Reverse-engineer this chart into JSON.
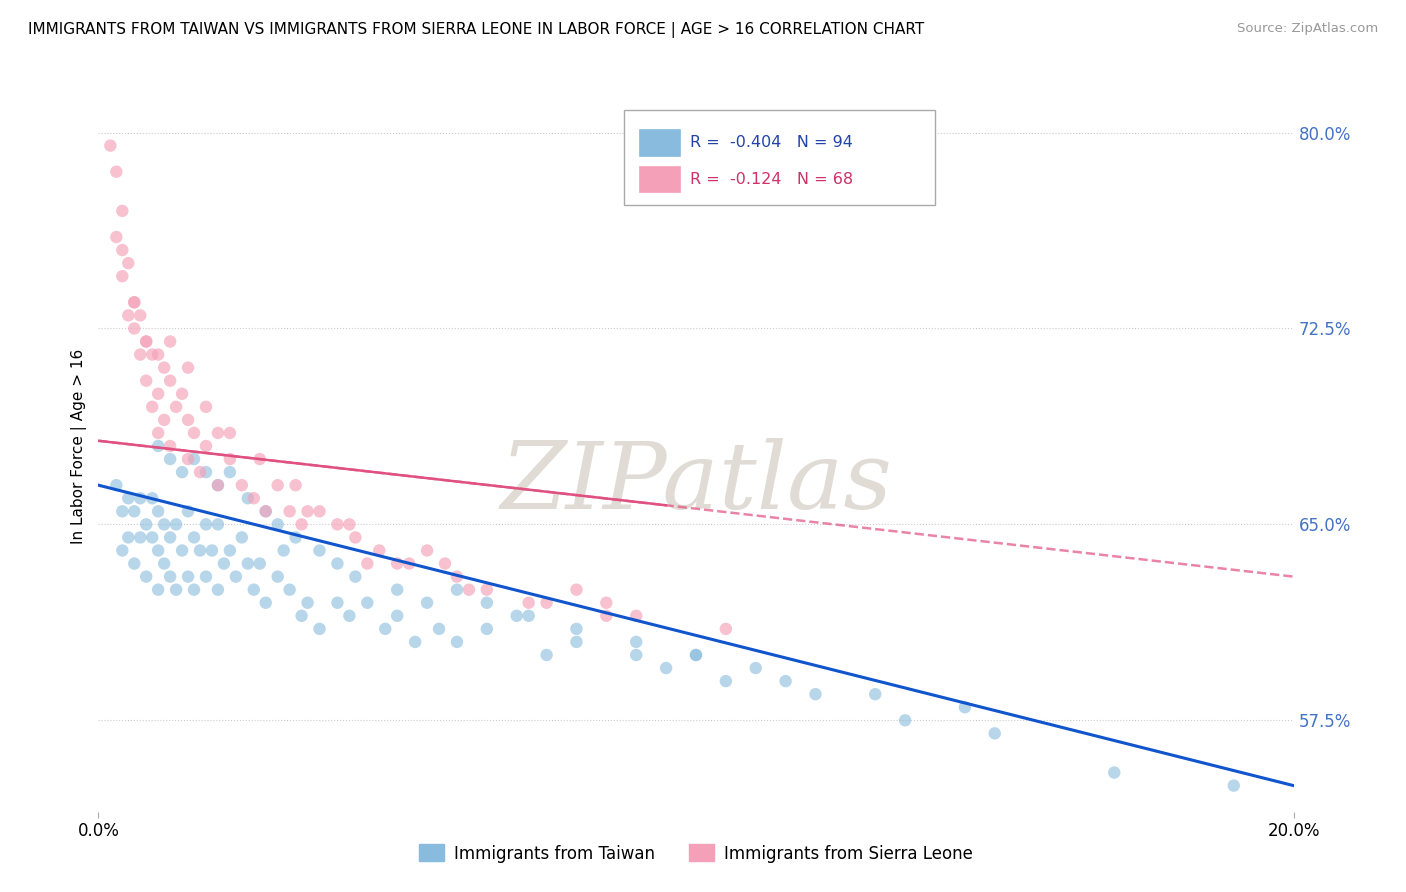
{
  "title": "IMMIGRANTS FROM TAIWAN VS IMMIGRANTS FROM SIERRA LEONE IN LABOR FORCE | AGE > 16 CORRELATION CHART",
  "source": "Source: ZipAtlas.com",
  "ylabel_label": "In Labor Force | Age > 16",
  "legend_label1": "Immigrants from Taiwan",
  "legend_label2": "Immigrants from Sierra Leone",
  "r1": -0.404,
  "n1": 94,
  "r2": -0.124,
  "n2": 68,
  "color_taiwan": "#88bbdd",
  "color_sierra": "#f4a0b8",
  "color_taiwan_line": "#1155cc",
  "color_sierra_line": "#e05080",
  "watermark": "ZIPatlas",
  "xlim": [
    0.0,
    20.0
  ],
  "ylim": [
    54.0,
    82.0
  ],
  "yticks": [
    57.5,
    65.0,
    72.5,
    80.0
  ],
  "taiwan_line_x0": 0.0,
  "taiwan_line_y0": 66.5,
  "taiwan_line_x1": 20.0,
  "taiwan_line_y1": 55.0,
  "sierra_line_x0": 0.0,
  "sierra_line_y0": 68.2,
  "sierra_line_x1": 20.0,
  "sierra_line_y1": 63.0,
  "taiwan_scatter_x": [
    0.3,
    0.4,
    0.4,
    0.5,
    0.5,
    0.6,
    0.6,
    0.7,
    0.7,
    0.8,
    0.8,
    0.9,
    0.9,
    1.0,
    1.0,
    1.0,
    1.1,
    1.1,
    1.2,
    1.2,
    1.3,
    1.3,
    1.4,
    1.5,
    1.5,
    1.6,
    1.6,
    1.7,
    1.8,
    1.8,
    1.9,
    2.0,
    2.0,
    2.1,
    2.2,
    2.3,
    2.4,
    2.5,
    2.6,
    2.7,
    2.8,
    3.0,
    3.1,
    3.2,
    3.4,
    3.5,
    3.7,
    4.0,
    4.2,
    4.5,
    4.8,
    5.0,
    5.3,
    5.7,
    6.0,
    6.5,
    7.0,
    7.5,
    8.0,
    9.0,
    9.5,
    10.0,
    10.5,
    11.0,
    12.0,
    13.5,
    14.5,
    1.0,
    1.2,
    1.4,
    1.6,
    1.8,
    2.0,
    2.2,
    2.5,
    2.8,
    3.0,
    3.3,
    3.7,
    4.0,
    4.3,
    5.0,
    5.5,
    6.0,
    6.5,
    7.2,
    8.0,
    9.0,
    10.0,
    11.5,
    13.0,
    15.0,
    17.0,
    19.0
  ],
  "taiwan_scatter_y": [
    66.5,
    65.5,
    64.0,
    66.0,
    64.5,
    65.5,
    63.5,
    66.0,
    64.5,
    65.0,
    63.0,
    66.0,
    64.5,
    65.5,
    64.0,
    62.5,
    65.0,
    63.5,
    64.5,
    63.0,
    65.0,
    62.5,
    64.0,
    65.5,
    63.0,
    64.5,
    62.5,
    64.0,
    65.0,
    63.0,
    64.0,
    65.0,
    62.5,
    63.5,
    64.0,
    63.0,
    64.5,
    63.5,
    62.5,
    63.5,
    62.0,
    63.0,
    64.0,
    62.5,
    61.5,
    62.0,
    61.0,
    62.0,
    61.5,
    62.0,
    61.0,
    61.5,
    60.5,
    61.0,
    60.5,
    61.0,
    61.5,
    60.0,
    60.5,
    60.0,
    59.5,
    60.0,
    59.0,
    59.5,
    58.5,
    57.5,
    58.0,
    68.0,
    67.5,
    67.0,
    67.5,
    67.0,
    66.5,
    67.0,
    66.0,
    65.5,
    65.0,
    64.5,
    64.0,
    63.5,
    63.0,
    62.5,
    62.0,
    62.5,
    62.0,
    61.5,
    61.0,
    60.5,
    60.0,
    59.0,
    58.5,
    57.0,
    55.5,
    55.0
  ],
  "sierra_scatter_x": [
    0.2,
    0.3,
    0.3,
    0.4,
    0.4,
    0.5,
    0.5,
    0.6,
    0.6,
    0.7,
    0.7,
    0.8,
    0.8,
    0.9,
    0.9,
    1.0,
    1.0,
    1.1,
    1.1,
    1.2,
    1.2,
    1.3,
    1.4,
    1.5,
    1.5,
    1.6,
    1.7,
    1.8,
    2.0,
    2.0,
    2.2,
    2.4,
    2.6,
    2.8,
    3.0,
    3.2,
    3.4,
    3.7,
    4.0,
    4.3,
    4.7,
    5.0,
    5.5,
    6.0,
    6.5,
    7.2,
    8.0,
    8.5,
    9.0,
    3.5,
    4.5,
    5.8,
    7.5,
    10.5,
    0.4,
    0.6,
    0.8,
    1.0,
    1.2,
    1.5,
    1.8,
    2.2,
    2.7,
    3.3,
    4.2,
    5.2,
    6.2,
    8.5
  ],
  "sierra_scatter_y": [
    79.5,
    78.5,
    76.0,
    77.0,
    74.5,
    75.0,
    73.0,
    73.5,
    72.5,
    73.0,
    71.5,
    72.0,
    70.5,
    71.5,
    69.5,
    70.0,
    68.5,
    71.0,
    69.0,
    70.5,
    68.0,
    69.5,
    70.0,
    69.0,
    67.5,
    68.5,
    67.0,
    68.0,
    68.5,
    66.5,
    67.5,
    66.5,
    66.0,
    65.5,
    66.5,
    65.5,
    65.0,
    65.5,
    65.0,
    64.5,
    64.0,
    63.5,
    64.0,
    63.0,
    62.5,
    62.0,
    62.5,
    62.0,
    61.5,
    65.5,
    63.5,
    63.5,
    62.0,
    61.0,
    75.5,
    73.5,
    72.0,
    71.5,
    72.0,
    71.0,
    69.5,
    68.5,
    67.5,
    66.5,
    65.0,
    63.5,
    62.5,
    61.5
  ]
}
